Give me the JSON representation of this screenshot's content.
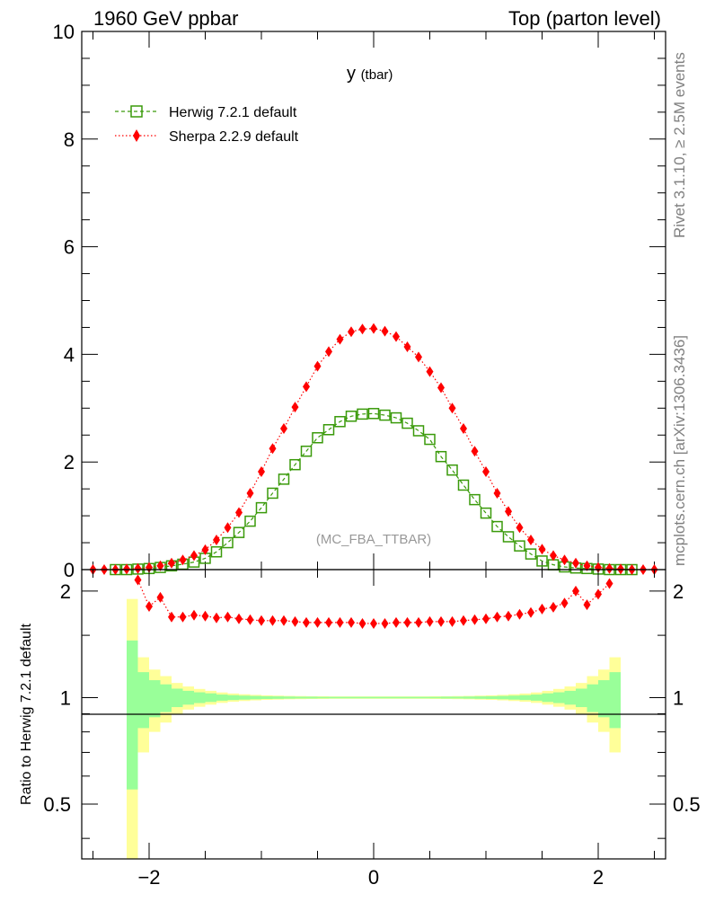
{
  "header": {
    "left": "1960 GeV ppbar",
    "right": "Top (parton level)"
  },
  "side_labels": {
    "rivet": "Rivet 3.1.10, ≥ 2.5M events",
    "mcplots": "mcplots.cern.ch [arXiv:1306.3436]"
  },
  "colors": {
    "herwig": "#3a9a0a",
    "sherpa": "#ff0000",
    "band_inner": "#99ff99",
    "band_outer": "#ffff99",
    "analysis": "#999999"
  },
  "chart_data": [
    {
      "type": "line",
      "panel": "main",
      "title": "y",
      "title_suffix": "(tbar)",
      "annotation": "(MC_FBA_TTBAR)",
      "ylim": [
        0,
        10
      ],
      "xlim": [
        -2.6,
        2.6
      ],
      "yticks": [
        "0",
        "2",
        "4",
        "6",
        "8",
        "10"
      ],
      "legend_position": "top-left",
      "series": [
        {
          "name": "Herwig 7.2.1 default",
          "marker": "open-square",
          "line": "dashed",
          "x": [
            -2.3,
            -2.2,
            -2.1,
            -2.0,
            -1.9,
            -1.8,
            -1.7,
            -1.6,
            -1.5,
            -1.4,
            -1.3,
            -1.2,
            -1.1,
            -1.0,
            -0.9,
            -0.8,
            -0.7,
            -0.6,
            -0.5,
            -0.4,
            -0.3,
            -0.2,
            -0.1,
            0.0,
            0.1,
            0.2,
            0.3,
            0.4,
            0.5,
            0.6,
            0.7,
            0.8,
            0.9,
            1.0,
            1.1,
            1.2,
            1.3,
            1.4,
            1.5,
            1.6,
            1.7,
            1.8,
            1.9,
            2.0,
            2.1,
            2.2,
            2.3
          ],
          "y": [
            0.0,
            0.0,
            0.01,
            0.02,
            0.04,
            0.07,
            0.1,
            0.14,
            0.21,
            0.33,
            0.5,
            0.69,
            0.9,
            1.15,
            1.42,
            1.68,
            1.95,
            2.2,
            2.45,
            2.6,
            2.75,
            2.85,
            2.89,
            2.9,
            2.87,
            2.82,
            2.72,
            2.58,
            2.42,
            2.1,
            1.85,
            1.57,
            1.3,
            1.05,
            0.8,
            0.61,
            0.44,
            0.29,
            0.16,
            0.09,
            0.05,
            0.03,
            0.02,
            0.01,
            0.0,
            0.0,
            0.0
          ]
        },
        {
          "name": "Sherpa 2.2.9 default",
          "marker": "filled-diamond",
          "line": "dotted",
          "x": [
            -2.5,
            -2.4,
            -2.3,
            -2.2,
            -2.1,
            -2.0,
            -1.9,
            -1.8,
            -1.7,
            -1.6,
            -1.5,
            -1.4,
            -1.3,
            -1.2,
            -1.1,
            -1.0,
            -0.9,
            -0.8,
            -0.7,
            -0.6,
            -0.5,
            -0.4,
            -0.3,
            -0.2,
            -0.1,
            0.0,
            0.1,
            0.2,
            0.3,
            0.4,
            0.5,
            0.6,
            0.7,
            0.8,
            0.9,
            1.0,
            1.1,
            1.2,
            1.3,
            1.4,
            1.5,
            1.6,
            1.7,
            1.8,
            1.9,
            2.0,
            2.1,
            2.2,
            2.3,
            2.4,
            2.5
          ],
          "y": [
            0.0,
            0.0,
            0.0,
            0.01,
            0.02,
            0.04,
            0.07,
            0.12,
            0.18,
            0.26,
            0.37,
            0.55,
            0.78,
            1.06,
            1.42,
            1.82,
            2.25,
            2.62,
            3.02,
            3.4,
            3.78,
            4.05,
            4.28,
            4.42,
            4.47,
            4.48,
            4.43,
            4.33,
            4.14,
            3.95,
            3.68,
            3.38,
            3.0,
            2.62,
            2.2,
            1.82,
            1.42,
            1.08,
            0.78,
            0.55,
            0.38,
            0.26,
            0.18,
            0.12,
            0.07,
            0.04,
            0.02,
            0.01,
            0.0,
            0.0,
            0.0
          ]
        }
      ]
    },
    {
      "type": "line",
      "panel": "ratio",
      "ylabel": "Ratio to Herwig 7.2.1 default",
      "log_y": true,
      "ylim": [
        0.35,
        2.3
      ],
      "xlim": [
        -2.6,
        2.6
      ],
      "xticks": [
        "−2",
        "0",
        "2"
      ],
      "yticks": [
        "0.5",
        "1",
        "2"
      ],
      "band": {
        "x_edges": [
          -2.2,
          -2.1,
          -2.0,
          -1.9,
          -1.8,
          -1.7,
          -1.6,
          -1.5,
          -1.4,
          -1.3,
          -1.2,
          -1.1,
          -1.0,
          -0.9,
          -0.8,
          -0.7,
          -0.6,
          -0.5,
          -0.4,
          -0.3,
          -0.2,
          -0.1,
          0.0,
          0.1,
          0.2,
          0.3,
          0.4,
          0.5,
          0.6,
          0.7,
          0.8,
          0.9,
          1.0,
          1.1,
          1.2,
          1.3,
          1.4,
          1.5,
          1.6,
          1.7,
          1.8,
          1.9,
          2.0,
          2.1,
          2.2
        ],
        "inner_half": [
          0.45,
          0.18,
          0.12,
          0.09,
          0.06,
          0.045,
          0.035,
          0.028,
          0.02,
          0.016,
          0.013,
          0.011,
          0.009,
          0.008,
          0.007,
          0.006,
          0.006,
          0.005,
          0.005,
          0.005,
          0.005,
          0.005,
          0.005,
          0.005,
          0.005,
          0.005,
          0.005,
          0.005,
          0.006,
          0.006,
          0.007,
          0.008,
          0.009,
          0.011,
          0.013,
          0.016,
          0.02,
          0.028,
          0.035,
          0.045,
          0.06,
          0.09,
          0.12,
          0.18,
          0.45
        ],
        "outer_half": [
          0.9,
          0.3,
          0.2,
          0.15,
          0.1,
          0.075,
          0.058,
          0.045,
          0.034,
          0.027,
          0.022,
          0.018,
          0.015,
          0.013,
          0.011,
          0.01,
          0.009,
          0.009,
          0.008,
          0.008,
          0.008,
          0.008,
          0.008,
          0.008,
          0.008,
          0.008,
          0.008,
          0.009,
          0.009,
          0.01,
          0.011,
          0.013,
          0.015,
          0.018,
          0.022,
          0.027,
          0.034,
          0.045,
          0.058,
          0.075,
          0.1,
          0.15,
          0.2,
          0.3,
          0.9
        ]
      },
      "series": [
        {
          "name": "Sherpa 2.2.9 default",
          "x": [
            -2.1,
            -2.0,
            -1.9,
            -1.8,
            -1.7,
            -1.6,
            -1.5,
            -1.4,
            -1.3,
            -1.2,
            -1.1,
            -1.0,
            -0.9,
            -0.8,
            -0.7,
            -0.6,
            -0.5,
            -0.4,
            -0.3,
            -0.2,
            -0.1,
            0.0,
            0.1,
            0.2,
            0.3,
            0.4,
            0.5,
            0.6,
            0.7,
            0.8,
            0.9,
            1.0,
            1.1,
            1.2,
            1.3,
            1.4,
            1.5,
            1.6,
            1.7,
            1.8,
            1.9,
            2.0,
            2.1
          ],
          "y": [
            2.15,
            1.81,
            1.92,
            1.69,
            1.69,
            1.71,
            1.7,
            1.68,
            1.69,
            1.67,
            1.66,
            1.65,
            1.65,
            1.65,
            1.64,
            1.63,
            1.63,
            1.63,
            1.63,
            1.63,
            1.62,
            1.62,
            1.62,
            1.63,
            1.63,
            1.63,
            1.64,
            1.64,
            1.64,
            1.65,
            1.66,
            1.67,
            1.69,
            1.7,
            1.72,
            1.74,
            1.78,
            1.8,
            1.85,
            2.0,
            1.83,
            1.96,
            2.1
          ]
        }
      ]
    }
  ]
}
